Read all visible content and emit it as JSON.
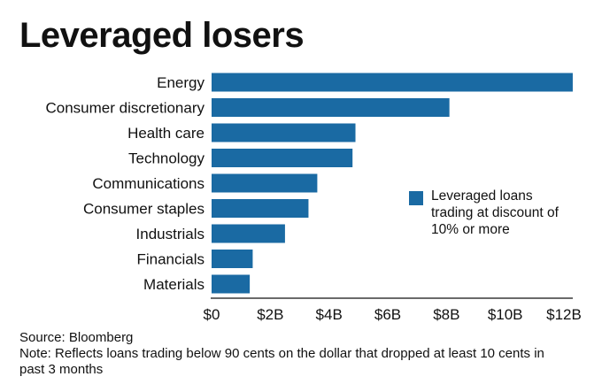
{
  "title": "Leveraged losers",
  "source": "Source: Bloomberg",
  "note": "Note: Reflects loans trading below 90 cents on the dollar that dropped at least 10 cents in past 3 months",
  "chart_data": {
    "type": "bar",
    "orientation": "horizontal",
    "title": "Leveraged losers",
    "categories": [
      "Energy",
      "Consumer discretionary",
      "Health care",
      "Technology",
      "Communications",
      "Consumer staples",
      "Industrials",
      "Financials",
      "Materials"
    ],
    "series": [
      {
        "name": "Leveraged loans trading at discount of 10% or more",
        "values": [
          12.3,
          8.1,
          4.9,
          4.8,
          3.6,
          3.3,
          2.5,
          1.4,
          1.3
        ],
        "color": "#1a6aa3"
      }
    ],
    "xlim": [
      0,
      12
    ],
    "xticks": [
      0,
      2,
      4,
      6,
      8,
      10,
      12
    ],
    "xtick_labels": [
      "$0",
      "$2B",
      "$4B",
      "$6B",
      "$8B",
      "$10B",
      "$12B"
    ],
    "unit": "billion USD",
    "grid": false,
    "legend": "right"
  }
}
